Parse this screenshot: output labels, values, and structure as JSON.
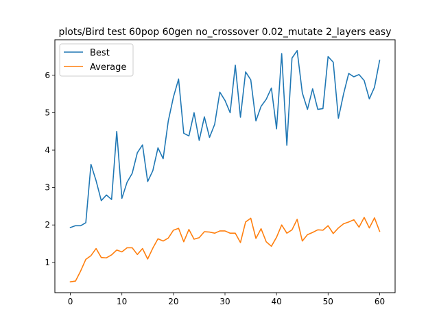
{
  "chart_data": {
    "type": "line",
    "title": "plots/Bird test 60pop 60gen no_crossover 0.02_mutate 2_layers easy",
    "xlabel": "",
    "ylabel": "",
    "xlim": [
      -3,
      63
    ],
    "ylim": [
      0.19,
      6.95
    ],
    "xticks": [
      0,
      10,
      20,
      30,
      40,
      50,
      60
    ],
    "yticks": [
      1,
      2,
      3,
      4,
      5,
      6
    ],
    "grid": false,
    "legend_position": "upper-left",
    "x": [
      0,
      1,
      2,
      3,
      4,
      5,
      6,
      7,
      8,
      9,
      10,
      11,
      12,
      13,
      14,
      15,
      16,
      17,
      18,
      19,
      20,
      21,
      22,
      23,
      24,
      25,
      26,
      27,
      28,
      29,
      30,
      31,
      32,
      33,
      34,
      35,
      36,
      37,
      38,
      39,
      40,
      41,
      42,
      43,
      44,
      45,
      46,
      47,
      48,
      49,
      50,
      51,
      52,
      53,
      54,
      55,
      56,
      57,
      58,
      59,
      60
    ],
    "series": [
      {
        "name": "Best",
        "color": "#1f77b4",
        "values": [
          1.93,
          1.98,
          1.98,
          2.06,
          3.62,
          3.18,
          2.65,
          2.8,
          2.68,
          4.5,
          2.71,
          3.14,
          3.38,
          3.93,
          4.14,
          3.16,
          3.45,
          4.06,
          3.77,
          4.78,
          5.42,
          5.9,
          4.45,
          4.38,
          5.0,
          4.26,
          4.89,
          4.34,
          4.69,
          5.55,
          5.33,
          5.0,
          6.27,
          4.88,
          6.09,
          5.88,
          4.78,
          5.17,
          5.36,
          5.66,
          4.57,
          6.58,
          4.13,
          6.46,
          6.66,
          5.53,
          5.09,
          5.64,
          5.09,
          5.11,
          6.5,
          6.35,
          4.85,
          5.5,
          6.05,
          5.96,
          6.02,
          5.86,
          5.37,
          5.68,
          6.4
        ]
      },
      {
        "name": "Average",
        "color": "#ff7f0e",
        "values": [
          0.48,
          0.5,
          0.77,
          1.08,
          1.18,
          1.37,
          1.13,
          1.12,
          1.2,
          1.33,
          1.28,
          1.39,
          1.39,
          1.21,
          1.37,
          1.09,
          1.38,
          1.63,
          1.57,
          1.65,
          1.86,
          1.91,
          1.55,
          1.88,
          1.62,
          1.66,
          1.82,
          1.81,
          1.78,
          1.84,
          1.84,
          1.78,
          1.78,
          1.53,
          2.08,
          2.18,
          1.64,
          1.9,
          1.55,
          1.43,
          1.67,
          2.0,
          1.78,
          1.87,
          2.15,
          1.57,
          1.74,
          1.8,
          1.87,
          1.86,
          1.98,
          1.77,
          1.92,
          2.03,
          2.08,
          2.14,
          1.94,
          2.2,
          1.92,
          2.19,
          1.83
        ]
      }
    ]
  }
}
